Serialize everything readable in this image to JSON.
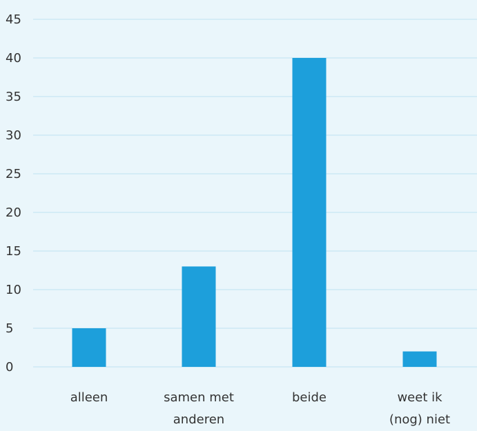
{
  "chart_data": {
    "type": "bar",
    "categories": [
      [
        "alleen"
      ],
      [
        "samen met",
        "anderen"
      ],
      [
        "beide"
      ],
      [
        "weet ik",
        "(nog) niet"
      ]
    ],
    "values": [
      5,
      13,
      40,
      2
    ],
    "ylim": [
      0,
      45
    ],
    "yticks": [
      0,
      5,
      10,
      15,
      20,
      25,
      30,
      35,
      40,
      45
    ],
    "grid": true,
    "title": "",
    "xlabel": "",
    "ylabel": "",
    "colors": {
      "bar": "#1d9fdb",
      "grid": "#bfe3f2",
      "background": "#eaf6fb",
      "text": "#333333"
    }
  }
}
